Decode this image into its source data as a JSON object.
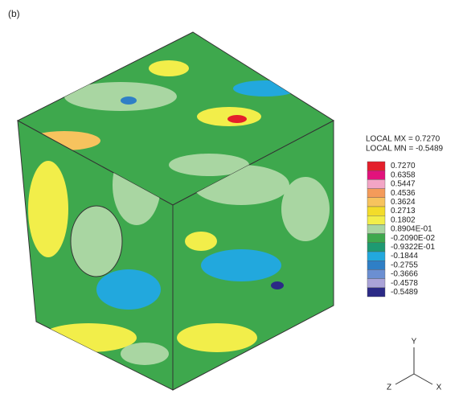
{
  "panel_label": "(b)",
  "legend": {
    "max_label": "LOCAL MX = 0.7270",
    "min_label": "LOCAL MN = -0.5489",
    "entries": [
      {
        "label": "0.7270",
        "color": "#e41f2b"
      },
      {
        "label": "0.6358",
        "color": "#e2127c"
      },
      {
        "label": "0.5447",
        "color": "#f3a5c6"
      },
      {
        "label": "0.4536",
        "color": "#f49b5a"
      },
      {
        "label": "0.3624",
        "color": "#f7c35e"
      },
      {
        "label": "0.2713",
        "color": "#f3dc2a"
      },
      {
        "label": "0.1802",
        "color": "#f2ee4a"
      },
      {
        "label": "0.8904E-01",
        "color": "#a9d6a2"
      },
      {
        "label": "-0.2090E-02",
        "color": "#3ea84d"
      },
      {
        "label": "-0.9322E-01",
        "color": "#1e9a72"
      },
      {
        "label": "-0.1844",
        "color": "#22a8dd"
      },
      {
        "label": "-0.2755",
        "color": "#2f7fc6"
      },
      {
        "label": "-0.3666",
        "color": "#6b8fd2"
      },
      {
        "label": "-0.4578",
        "color": "#aaa3d8"
      },
      {
        "label": "-0.5489",
        "color": "#2b2a86"
      }
    ]
  },
  "axes": {
    "y": "Y",
    "z": "Z",
    "x": "X"
  }
}
